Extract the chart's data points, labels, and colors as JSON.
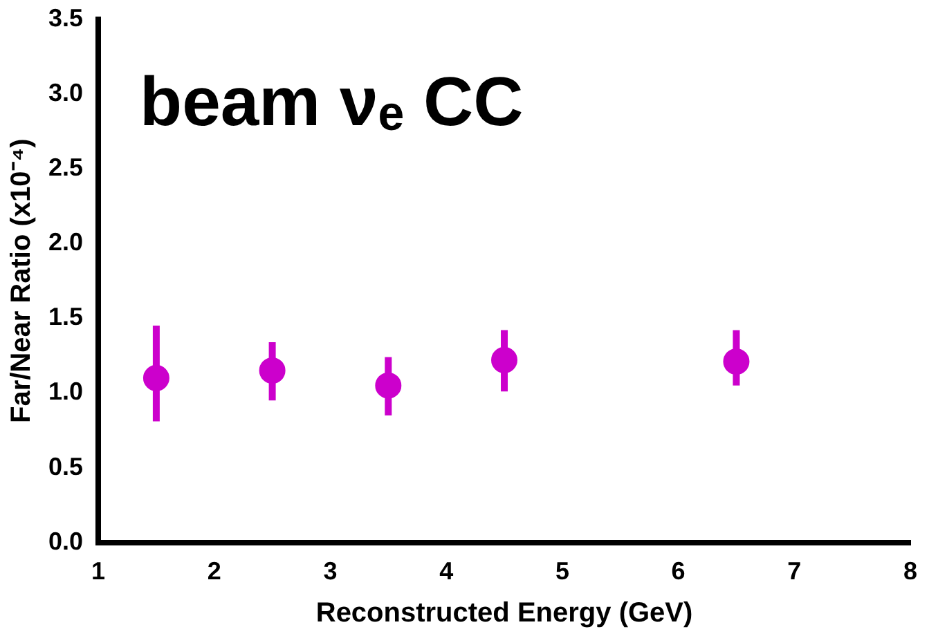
{
  "chart_data": {
    "type": "scatter",
    "xlabel": "Reconstructed Energy (GeV)",
    "ylabel": "Far/Near Ratio (x10⁻⁴)",
    "annotations": [
      "beam νₑ CC"
    ],
    "x": [
      1.5,
      2.5,
      3.5,
      4.5,
      6.5
    ],
    "series": [
      {
        "color": "#cc00cc",
        "values": [
          1.1,
          1.15,
          1.05,
          1.22,
          1.21
        ],
        "errors": [
          [
            0.81,
            1.45
          ],
          [
            0.95,
            1.34
          ],
          [
            0.85,
            1.24
          ],
          [
            1.01,
            1.42
          ],
          [
            1.05,
            1.42
          ]
        ]
      }
    ],
    "xlim": [
      1,
      8
    ],
    "xticks": [
      1,
      2,
      3,
      4,
      5,
      6,
      7,
      8
    ],
    "ylim": [
      0,
      3.5
    ],
    "yticks": [
      {
        "value": 0,
        "label": "0.0"
      },
      {
        "value": 0.5,
        "label": "0.5"
      },
      {
        "value": 1,
        "label": "1.0"
      },
      {
        "value": 1.5,
        "label": "1.5"
      },
      {
        "value": 2,
        "label": "2.0"
      },
      {
        "value": 2.5,
        "label": "2.5"
      },
      {
        "value": 3,
        "label": "3.0"
      },
      {
        "value": 3.5,
        "label": "3.5"
      }
    ],
    "grid": false,
    "legend": false,
    "marker": "circle"
  }
}
